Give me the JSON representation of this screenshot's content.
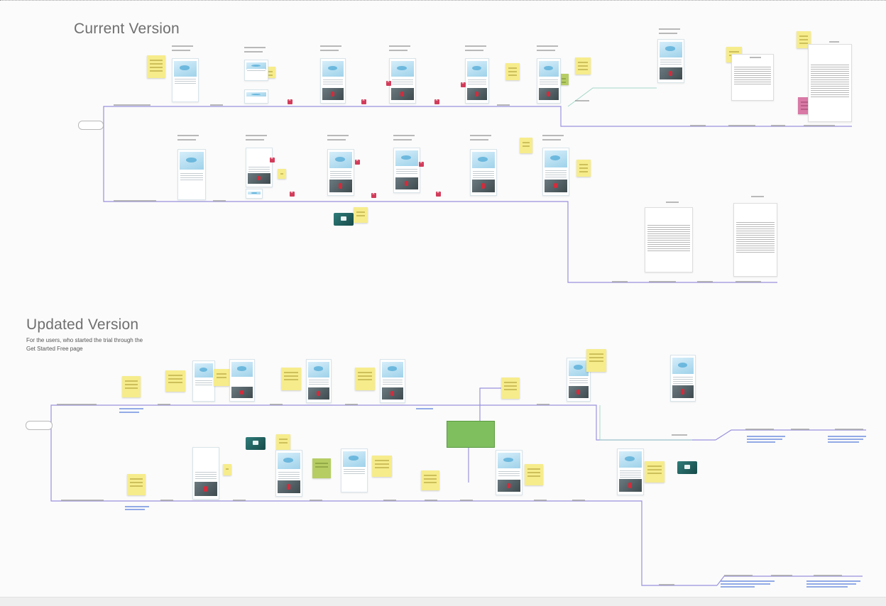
{
  "board": {
    "current": {
      "title": "Current Version",
      "start_pill": "",
      "screen_labels_top": [
        "",
        "",
        "",
        "",
        "",
        ""
      ],
      "screen_labels_bottom": [
        "",
        "",
        "",
        "",
        "",
        ""
      ],
      "doc_titles": [
        "",
        ""
      ]
    },
    "updated": {
      "title": "Updated Version",
      "subtitle": "For the users, who started the trial through the\nGet Started Free page",
      "start_pill": ""
    }
  },
  "colors": {
    "connector": "#7a6fd0",
    "connector_light": "#9ad3c3",
    "sticky": "#f6ec8c",
    "sticky_green": "#b6cd63",
    "sticky_pink": "#d979a6",
    "error_badge": "#d23c5a",
    "link": "#3a6fd8"
  },
  "icons": {
    "error_badge": "close-icon",
    "start_node": "start-pill"
  }
}
